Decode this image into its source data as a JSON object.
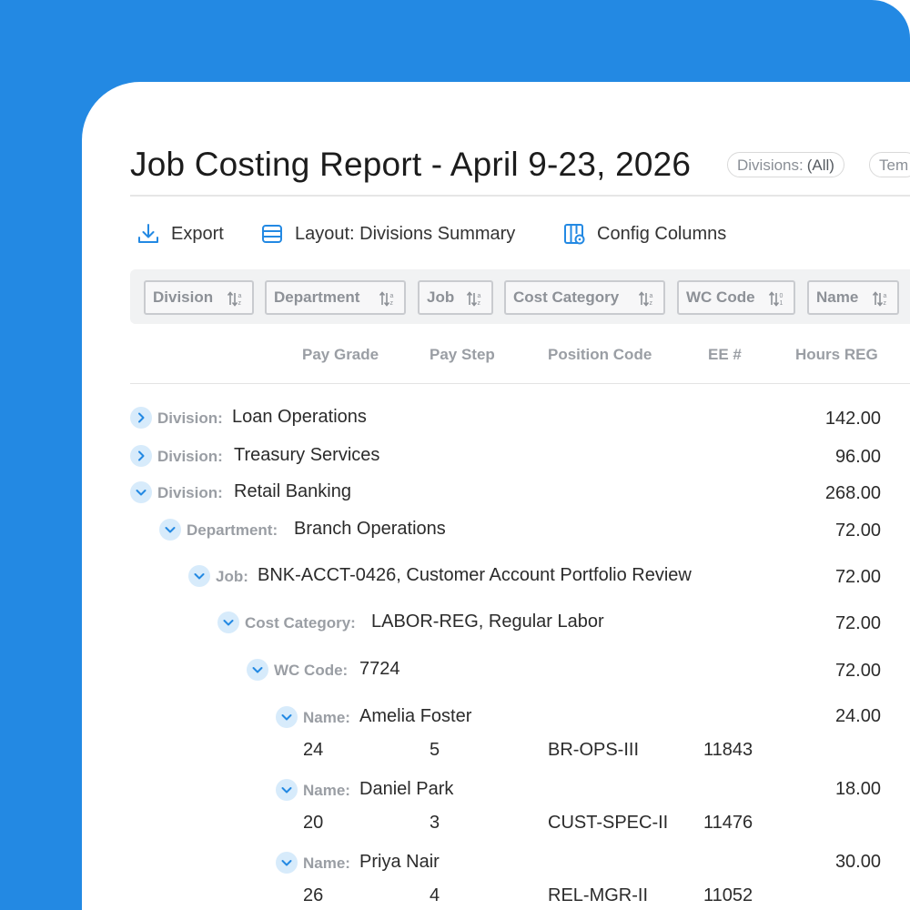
{
  "report": {
    "title": "Job Costing Report - April 9-23, 2026",
    "filters": [
      {
        "label": "Divisions:",
        "value": "(All)"
      },
      {
        "label": "Tem",
        "value": ""
      }
    ]
  },
  "toolbar": {
    "export_label": "Export",
    "layout_label": "Layout: Divisions Summary",
    "config_label": "Config Columns"
  },
  "grouping": [
    {
      "label": "Division"
    },
    {
      "label": "Department"
    },
    {
      "label": "Job"
    },
    {
      "label": "Cost Category"
    },
    {
      "label": "WC Code"
    },
    {
      "label": "Name"
    }
  ],
  "columns": [
    "Pay Grade",
    "Pay Step",
    "Position Code",
    "EE #",
    "Hours REG"
  ],
  "tree": [
    {
      "key": "Division:",
      "value": "Loan Operations",
      "hours": "142.00",
      "expanded": false
    },
    {
      "key": "Division:",
      "value": "Treasury Services",
      "hours": "96.00",
      "expanded": false
    },
    {
      "key": "Division:",
      "value": "Retail Banking",
      "hours": "268.00",
      "expanded": true
    },
    {
      "key": "Department:",
      "value": "Branch Operations",
      "hours": "72.00",
      "expanded": true
    },
    {
      "key": "Job:",
      "value": "BNK-ACCT-0426, Customer Account Portfolio Review",
      "hours": "72.00",
      "expanded": true
    },
    {
      "key": "Cost Category:",
      "value": "LABOR-REG, Regular Labor",
      "hours": "72.00",
      "expanded": true
    },
    {
      "key": "WC Code:",
      "value": "7724",
      "hours": "72.00",
      "expanded": true
    }
  ],
  "employees": [
    {
      "key": "Name:",
      "name": "Amelia Foster",
      "hours": "24.00",
      "pay_grade": "24",
      "pay_step": "5",
      "position_code": "BR-OPS-III",
      "ee": "11843"
    },
    {
      "key": "Name:",
      "name": "Daniel Park",
      "hours": "18.00",
      "pay_grade": "20",
      "pay_step": "3",
      "position_code": "CUST-SPEC-II",
      "ee": "11476"
    },
    {
      "key": "Name:",
      "name": "Priya Nair",
      "hours": "30.00",
      "pay_grade": "26",
      "pay_step": "4",
      "position_code": "REL-MGR-II",
      "ee": "11052"
    }
  ],
  "colors": {
    "accent": "#2389e3",
    "toggle_bg": "#d7ebfb",
    "label_gray": "#9a9ea4"
  }
}
